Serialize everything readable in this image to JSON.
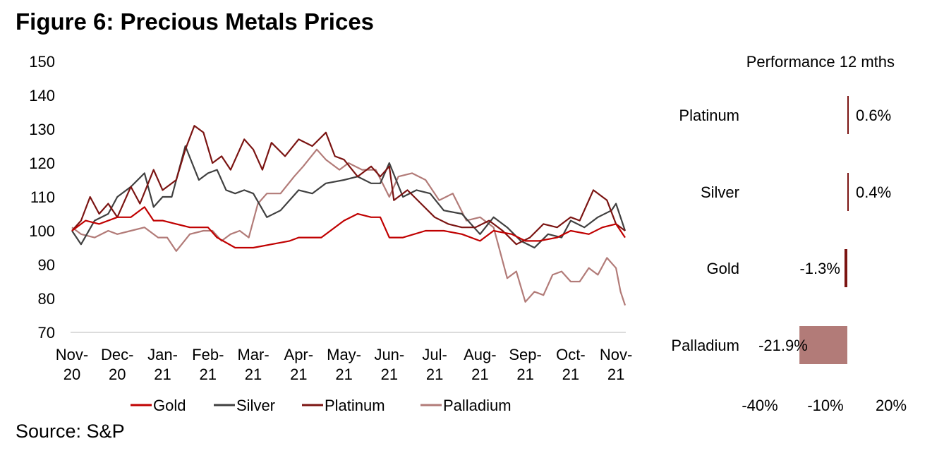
{
  "title": "Figure 6: Precious Metals Prices",
  "source": "Source: S&P",
  "colors": {
    "gold": "#c00000",
    "silver": "#404040",
    "platinum": "#7b1412",
    "palladium": "#b27b78",
    "bar": "#b27b78"
  },
  "chart_data": [
    {
      "type": "line",
      "title": "",
      "ylim": [
        70,
        150
      ],
      "yticks": [
        "150",
        "140",
        "130",
        "120",
        "110",
        "100",
        "90",
        "80",
        "70"
      ],
      "x_ticks": [
        {
          "top": "Nov-",
          "bottom": "20"
        },
        {
          "top": "Dec-",
          "bottom": "20"
        },
        {
          "top": "Jan-",
          "bottom": "21"
        },
        {
          "top": "Feb-",
          "bottom": "21"
        },
        {
          "top": "Mar-",
          "bottom": "21"
        },
        {
          "top": "Apr-",
          "bottom": "21"
        },
        {
          "top": "May-",
          "bottom": "21"
        },
        {
          "top": "Jun-",
          "bottom": "21"
        },
        {
          "top": "Jul-",
          "bottom": "21"
        },
        {
          "top": "Aug-",
          "bottom": "21"
        },
        {
          "top": "Sep-",
          "bottom": "21"
        },
        {
          "top": "Oct-",
          "bottom": "21"
        },
        {
          "top": "Nov-",
          "bottom": "21"
        }
      ],
      "x_month_index": [
        0,
        1,
        2,
        3,
        4,
        5,
        6,
        7,
        8,
        9,
        10,
        11,
        12
      ],
      "series": [
        {
          "name": "Gold",
          "color_key": "gold",
          "x": [
            0,
            0.3,
            0.6,
            1,
            1.3,
            1.6,
            1.8,
            2,
            2.3,
            2.6,
            3,
            3.2,
            3.6,
            4,
            4.4,
            4.8,
            5,
            5.5,
            6,
            6.3,
            6.6,
            6.8,
            7,
            7.3,
            7.8,
            8.2,
            8.6,
            9,
            9.3,
            9.7,
            10,
            10.3,
            10.7,
            11,
            11.4,
            11.7,
            12,
            12.2
          ],
          "values": [
            100,
            103,
            102,
            104,
            104,
            107,
            103,
            103,
            102,
            101,
            101,
            98,
            95,
            95,
            96,
            97,
            98,
            98,
            103,
            105,
            104,
            104,
            98,
            98,
            100,
            100,
            99,
            97,
            100,
            99,
            97,
            97,
            98,
            100,
            99,
            101,
            102,
            98
          ]
        },
        {
          "name": "Silver",
          "color_key": "silver",
          "x": [
            0,
            0.2,
            0.5,
            0.8,
            1,
            1.3,
            1.6,
            1.8,
            2,
            2.2,
            2.5,
            2.8,
            3,
            3.2,
            3.4,
            3.6,
            3.8,
            4,
            4.3,
            4.6,
            5,
            5.3,
            5.6,
            6,
            6.3,
            6.6,
            6.8,
            7,
            7.3,
            7.6,
            7.9,
            8.2,
            8.6,
            9,
            9.3,
            9.6,
            9.9,
            10.2,
            10.5,
            10.8,
            11,
            11.3,
            11.6,
            11.9,
            12,
            12.2
          ],
          "values": [
            100,
            96,
            103,
            105,
            110,
            113,
            117,
            107,
            110,
            110,
            125,
            115,
            117,
            118,
            112,
            111,
            112,
            111,
            104,
            106,
            112,
            111,
            114,
            115,
            116,
            114,
            114,
            120,
            110,
            112,
            111,
            106,
            105,
            99,
            104,
            101,
            97,
            95,
            99,
            98,
            103,
            101,
            104,
            106,
            108,
            100
          ]
        },
        {
          "name": "Platinum",
          "color_key": "platinum",
          "x": [
            0,
            0.2,
            0.4,
            0.6,
            0.8,
            1,
            1.3,
            1.5,
            1.8,
            2,
            2.3,
            2.5,
            2.7,
            2.9,
            3.1,
            3.3,
            3.5,
            3.8,
            4,
            4.2,
            4.4,
            4.7,
            5,
            5.3,
            5.6,
            5.8,
            6,
            6.3,
            6.6,
            6.8,
            7,
            7.1,
            7.4,
            7.7,
            8,
            8.3,
            8.6,
            8.9,
            9.2,
            9.5,
            9.8,
            10.1,
            10.4,
            10.7,
            11,
            11.2,
            11.5,
            11.8,
            12,
            12.2
          ],
          "values": [
            100,
            103,
            110,
            105,
            108,
            104,
            113,
            108,
            118,
            112,
            115,
            124,
            131,
            129,
            120,
            122,
            118,
            127,
            124,
            118,
            126,
            122,
            127,
            125,
            129,
            122,
            121,
            116,
            119,
            116,
            119,
            109,
            112,
            108,
            104,
            102,
            101,
            101,
            103,
            100,
            96,
            98,
            102,
            101,
            104,
            103,
            112,
            109,
            102,
            100
          ]
        },
        {
          "name": "Palladium",
          "color_key": "palladium",
          "x": [
            0,
            0.2,
            0.5,
            0.8,
            1,
            1.3,
            1.6,
            1.9,
            2.1,
            2.3,
            2.6,
            2.9,
            3.1,
            3.3,
            3.5,
            3.7,
            3.9,
            4.1,
            4.3,
            4.6,
            4.9,
            5.1,
            5.4,
            5.6,
            5.9,
            6.1,
            6.4,
            6.7,
            7,
            7.2,
            7.5,
            7.8,
            8.1,
            8.4,
            8.7,
            9,
            9.3,
            9.6,
            9.8,
            10,
            10.2,
            10.4,
            10.6,
            10.8,
            11,
            11.2,
            11.4,
            11.6,
            11.8,
            12,
            12.1,
            12.2
          ],
          "values": [
            101,
            99,
            98,
            100,
            99,
            100,
            101,
            98,
            98,
            94,
            99,
            100,
            100,
            97,
            99,
            100,
            98,
            108,
            111,
            111,
            116,
            119,
            124,
            121,
            118,
            120,
            118,
            118,
            110,
            116,
            117,
            115,
            109,
            111,
            103,
            104,
            101,
            86,
            88,
            79,
            82,
            81,
            87,
            88,
            85,
            85,
            89,
            87,
            92,
            89,
            82,
            78
          ]
        }
      ]
    },
    {
      "type": "bar",
      "orientation": "horizontal",
      "title": "Performance 12 mths",
      "categories": [
        "Platinum",
        "Silver",
        "Gold",
        "Palladium"
      ],
      "values": [
        0.6,
        0.4,
        -1.3,
        -21.9
      ],
      "data_labels": [
        "0.6%",
        "0.4%",
        "-1.3%",
        "-21.9%"
      ],
      "xlim": [
        -40,
        20
      ],
      "x_tick_labels": [
        "-40%",
        "-10%",
        "20%"
      ]
    }
  ]
}
